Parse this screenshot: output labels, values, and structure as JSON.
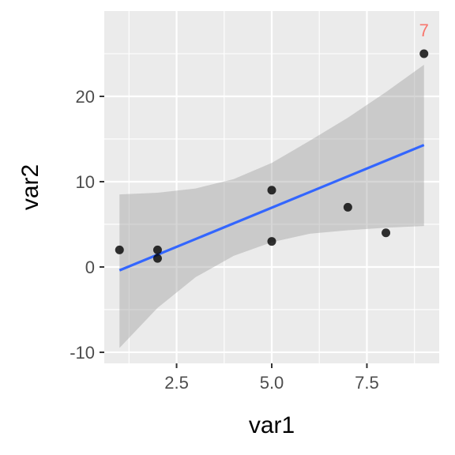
{
  "chart_data": {
    "type": "scatter",
    "xlabel": "var1",
    "ylabel": "var2",
    "xlim": [
      0.6,
      9.4
    ],
    "ylim": [
      -11.3,
      30
    ],
    "grid": true,
    "x_ticks": [
      2.5,
      5.0,
      7.5
    ],
    "x_tick_labels": [
      "2.5",
      "5.0",
      "7.5"
    ],
    "x_minor_ticks": [
      1.25,
      3.75,
      6.25,
      8.75
    ],
    "y_ticks": [
      -10,
      0,
      10,
      20
    ],
    "y_tick_labels": [
      "-10",
      "0",
      "10",
      "20"
    ],
    "y_minor_ticks": [
      -5,
      5,
      15,
      25
    ],
    "points": [
      {
        "x": 1,
        "y": 2
      },
      {
        "x": 2,
        "y": 2
      },
      {
        "x": 2,
        "y": 1
      },
      {
        "x": 5,
        "y": 9
      },
      {
        "x": 5,
        "y": 3
      },
      {
        "x": 7,
        "y": 7
      },
      {
        "x": 8,
        "y": 4
      },
      {
        "x": 9,
        "y": 25
      }
    ],
    "fit_line": {
      "x": [
        1,
        9
      ],
      "y": [
        -0.4,
        14.3
      ]
    },
    "confidence_band": {
      "x": [
        1,
        2,
        3,
        4,
        5,
        6,
        7,
        8,
        9
      ],
      "upper": [
        8.5,
        8.7,
        9.2,
        10.3,
        12.2,
        14.8,
        17.5,
        20.5,
        23.7
      ],
      "lower": [
        -9.5,
        -4.8,
        -1.2,
        1.3,
        2.9,
        3.9,
        4.3,
        4.6,
        4.8
      ]
    },
    "annotations": [
      {
        "x": 9,
        "y": 25,
        "text": "7",
        "color": "#F8766D"
      }
    ],
    "colors": {
      "panel": "#EBEBEB",
      "grid": "#FFFFFF",
      "point": "#000000",
      "line": "#3366FF",
      "band": "#999999"
    }
  }
}
